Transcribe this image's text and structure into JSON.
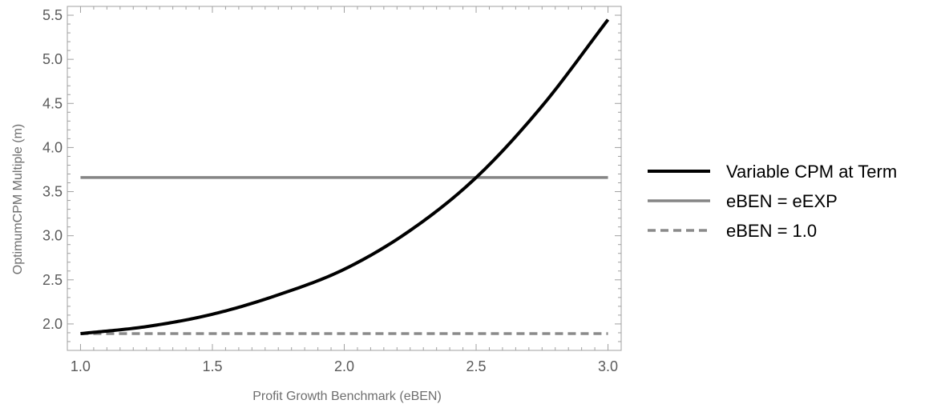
{
  "chart_data": {
    "type": "line",
    "title": "",
    "xlabel": "Profit Growth Benchmark (eBEN)",
    "ylabel": "OptimumCPM Multiple (m)",
    "xlim": [
      0.95,
      3.05
    ],
    "ylim": [
      1.7,
      5.6
    ],
    "xticks": [
      1.0,
      1.5,
      2.0,
      2.5,
      3.0
    ],
    "xtick_labels": [
      "1.0",
      "1.5",
      "2.0",
      "2.5",
      "3.0"
    ],
    "yticks": [
      2.0,
      2.5,
      3.0,
      3.5,
      4.0,
      4.5,
      5.0,
      5.5
    ],
    "ytick_labels": [
      "2.0",
      "2.5",
      "3.0",
      "3.5",
      "4.0",
      "4.5",
      "5.0",
      "5.5"
    ],
    "grid": false,
    "legend_position": "right",
    "series": [
      {
        "name": "Variable CPM at Term",
        "color": "#000000",
        "style": "solid",
        "x": [
          1.0,
          1.25,
          1.5,
          1.75,
          2.0,
          2.25,
          2.5,
          2.75,
          3.0
        ],
        "y": [
          1.89,
          1.97,
          2.11,
          2.33,
          2.62,
          3.06,
          3.66,
          4.47,
          5.45
        ]
      },
      {
        "name": "eBEN = eEXP",
        "color": "#858585",
        "style": "solid",
        "x": [
          1.0,
          3.0
        ],
        "y": [
          3.66,
          3.66
        ]
      },
      {
        "name": "eBEN = 1.0",
        "color": "#8a8a8a",
        "style": "dashed",
        "x": [
          1.0,
          3.0
        ],
        "y": [
          1.89,
          1.89
        ]
      }
    ]
  }
}
